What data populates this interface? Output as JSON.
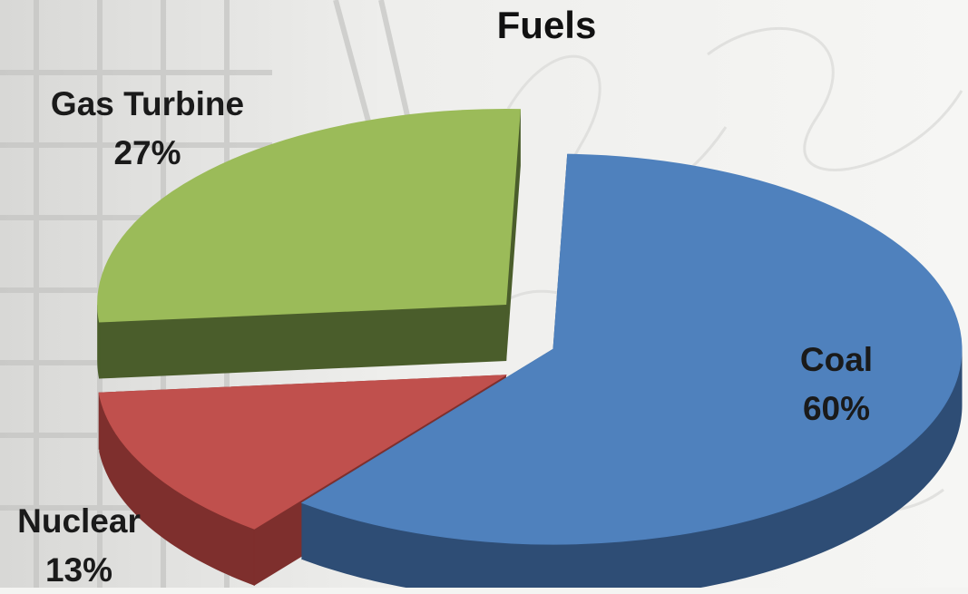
{
  "chart_data": {
    "type": "pie",
    "title": "Fuels",
    "slices": [
      {
        "name": "Coal",
        "value": 60,
        "label": "60%",
        "color": "#4f81bd",
        "side_color": "#2e4d75",
        "exploded": false
      },
      {
        "name": "Nuclear",
        "value": 13,
        "label": "13%",
        "color": "#c0504d",
        "side_color": "#7e2f2d",
        "exploded": true
      },
      {
        "name": "Gas Turbine",
        "value": 27,
        "label": "27%",
        "color": "#9bbb59",
        "side_color": "#4a5d2b",
        "exploded": true
      }
    ],
    "style": "3d-exploded"
  }
}
